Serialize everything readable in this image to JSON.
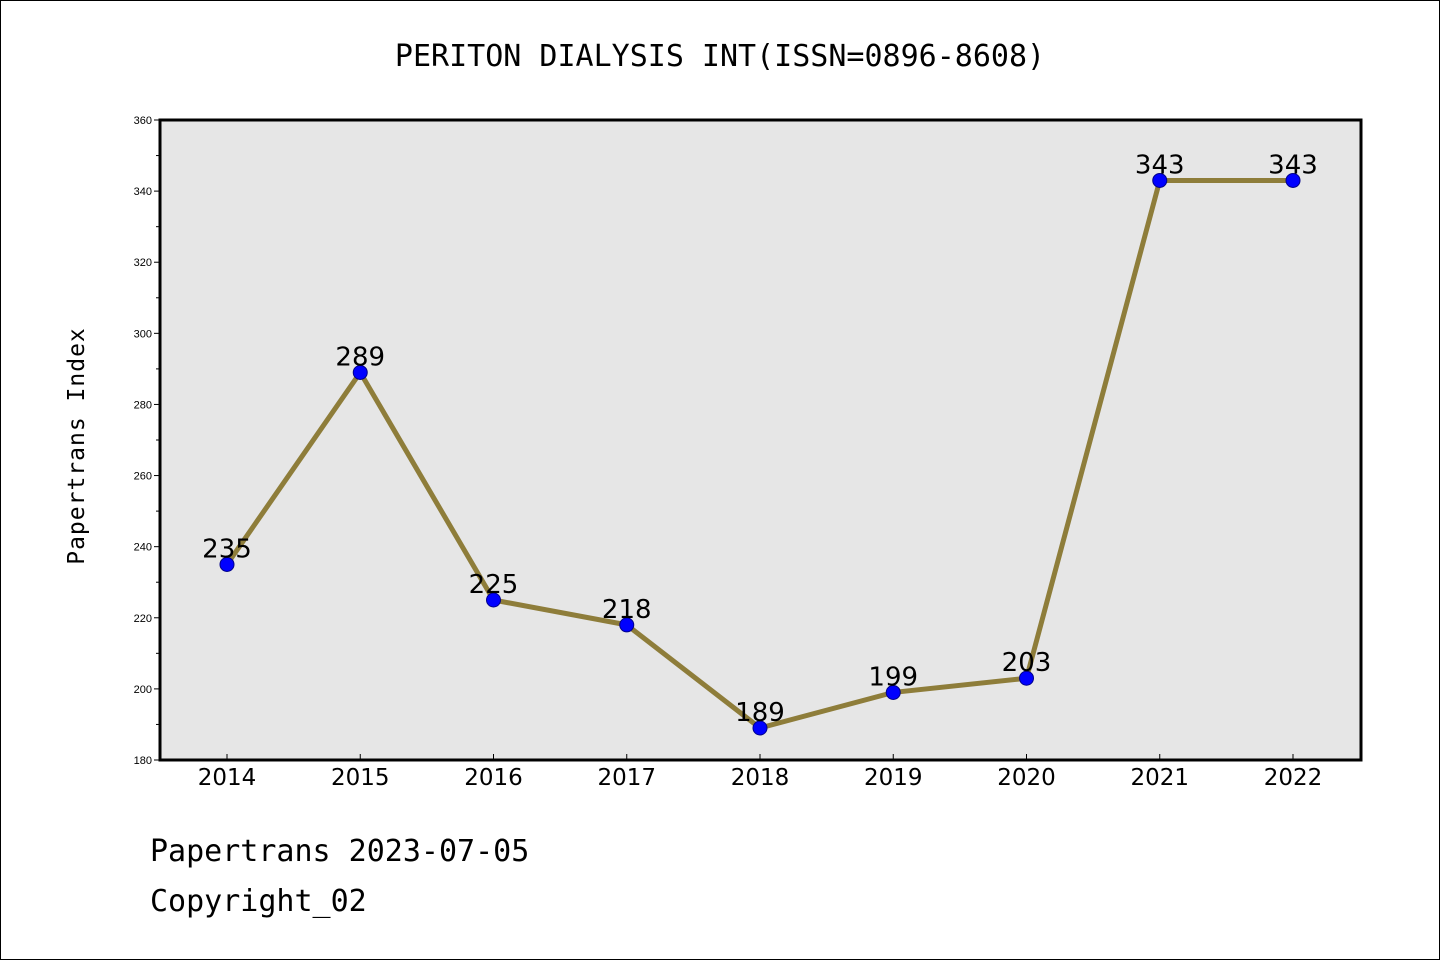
{
  "chart_data": {
    "type": "line",
    "title": "PERITON DIALYSIS INT(ISSN=0896-8608)",
    "xlabel": "",
    "ylabel": "Papertrans Index",
    "categories": [
      "2014",
      "2015",
      "2016",
      "2017",
      "2018",
      "2019",
      "2020",
      "2021",
      "2022"
    ],
    "series": [
      {
        "values": [
          235,
          289,
          225,
          218,
          189,
          199,
          203,
          343,
          343
        ]
      }
    ],
    "ylim": [
      180,
      360
    ],
    "yticks": [
      180,
      200,
      220,
      240,
      260,
      280,
      300,
      320,
      340,
      360
    ],
    "grid": false,
    "colors": {
      "line": "#8E7D3A",
      "marker": "#0000FF",
      "plot_bg": "#E6E6E6"
    }
  },
  "footer": {
    "line1": "Papertrans 2023-07-05",
    "line2": "Copyright_02"
  }
}
